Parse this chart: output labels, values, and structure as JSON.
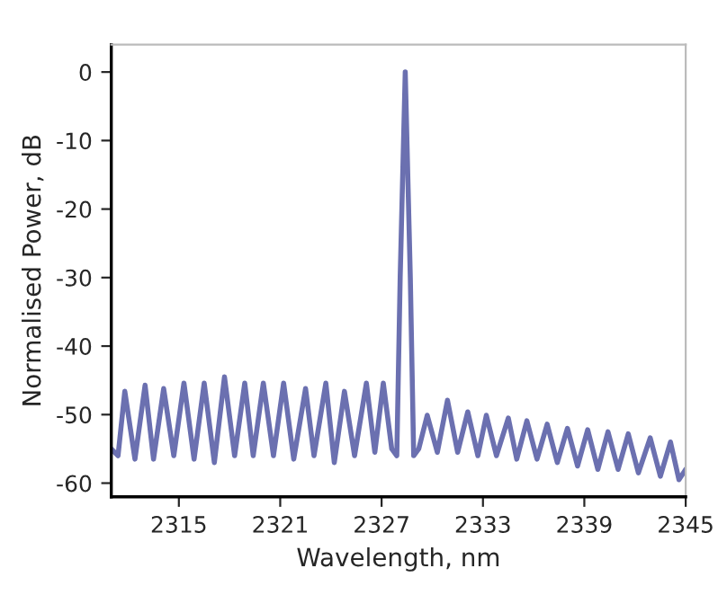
{
  "chart_data": {
    "type": "line",
    "xlabel": "Wavelength, nm",
    "ylabel": "Normalised Power, dB",
    "xlim": [
      2311,
      2345
    ],
    "ylim": [
      -62,
      4
    ],
    "xticks": [
      2315,
      2321,
      2327,
      2333,
      2339,
      2345
    ],
    "yticks": [
      0,
      -10,
      -20,
      -30,
      -40,
      -50,
      -60
    ],
    "grid": false,
    "series": [
      {
        "color": "#6b70b0",
        "x": [
          2311.0,
          2311.4,
          2311.8,
          2312.4,
          2313.0,
          2313.5,
          2314.1,
          2314.7,
          2315.3,
          2315.9,
          2316.5,
          2317.1,
          2317.7,
          2318.3,
          2318.9,
          2319.4,
          2320.0,
          2320.6,
          2321.2,
          2321.8,
          2322.5,
          2323.0,
          2323.7,
          2324.2,
          2324.8,
          2325.4,
          2326.1,
          2326.6,
          2327.1,
          2327.6,
          2327.9,
          2328.1,
          2328.4,
          2328.7,
          2328.9,
          2329.2,
          2329.7,
          2330.3,
          2330.9,
          2331.5,
          2332.1,
          2332.7,
          2333.2,
          2333.8,
          2334.5,
          2335.0,
          2335.6,
          2336.2,
          2336.8,
          2337.4,
          2338.0,
          2338.6,
          2339.2,
          2339.8,
          2340.4,
          2341.0,
          2341.6,
          2342.2,
          2342.9,
          2343.5,
          2344.1,
          2344.6,
          2345.0
        ],
        "values": [
          -55,
          -56,
          -46.6,
          -56.5,
          -45.7,
          -56.5,
          -46.2,
          -56,
          -45.4,
          -56.5,
          -45.4,
          -57,
          -44.5,
          -56,
          -45.4,
          -56,
          -45.4,
          -56,
          -45.4,
          -56.5,
          -46.2,
          -56,
          -45.4,
          -57,
          -46.6,
          -56,
          -45.4,
          -55.5,
          -45.4,
          -55,
          -56,
          -30,
          0,
          -30,
          -56,
          -55,
          -50.1,
          -55.5,
          -47.9,
          -55.5,
          -49.6,
          -56,
          -50.1,
          -56,
          -50.5,
          -56.5,
          -50.9,
          -56.5,
          -51.4,
          -57,
          -52.0,
          -57.5,
          -52.2,
          -58,
          -52.5,
          -58,
          -52.8,
          -58.5,
          -53.4,
          -59,
          -54.0,
          -59.5,
          -58
        ]
      }
    ]
  }
}
